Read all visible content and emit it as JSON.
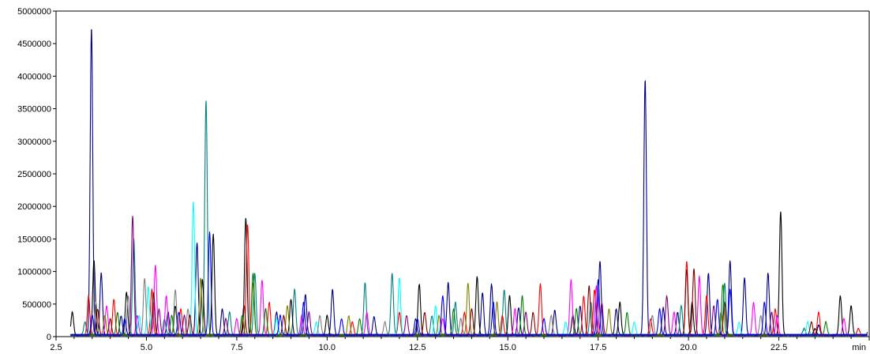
{
  "chart_data": {
    "type": "line",
    "title": "",
    "xlabel": "",
    "ylabel": "",
    "x_unit_label": "min",
    "xlim": [
      2.5,
      25.0
    ],
    "ylim": [
      0,
      5000000
    ],
    "x_ticks": [
      2.5,
      5.0,
      7.5,
      10.0,
      12.5,
      15.0,
      17.5,
      20.0,
      22.5
    ],
    "x_tick_labels": [
      "2.5",
      "5.0",
      "7.5",
      "10.0",
      "12.5",
      "15.0",
      "17.5",
      "20.0",
      "22.5"
    ],
    "y_ticks": [
      0,
      500000,
      1000000,
      1500000,
      2000000,
      2500000,
      3000000,
      3500000,
      4000000,
      4500000,
      5000000
    ],
    "y_tick_labels": [
      "0",
      "500000",
      "1000000",
      "1500000",
      "2000000",
      "2500000",
      "3000000",
      "3500000",
      "4000000",
      "4500000",
      "5000000"
    ],
    "grid": false,
    "legend": "none",
    "series": [
      {
        "color": "#000080",
        "peaks": [
          [
            3.48,
            4720000
          ],
          [
            3.75,
            950000
          ],
          [
            4.3,
            300000
          ],
          [
            5.6,
            350000
          ],
          [
            6.4,
            1420000
          ],
          [
            7.1,
            400000
          ],
          [
            8.6,
            350000
          ],
          [
            9.4,
            620000
          ],
          [
            10.15,
            700000
          ],
          [
            11.3,
            280000
          ],
          [
            12.45,
            250000
          ],
          [
            13.35,
            800000
          ],
          [
            14.3,
            650000
          ],
          [
            14.55,
            780000
          ],
          [
            15.3,
            420000
          ],
          [
            16.3,
            380000
          ],
          [
            17.0,
            450000
          ],
          [
            17.55,
            1130000
          ],
          [
            18.0,
            400000
          ],
          [
            18.8,
            3920000
          ],
          [
            19.3,
            420000
          ],
          [
            19.7,
            350000
          ],
          [
            20.55,
            950000
          ],
          [
            21.15,
            1130000
          ],
          [
            21.55,
            880000
          ],
          [
            22.2,
            950000
          ],
          [
            23.6,
            150000
          ],
          [
            25.0,
            150000
          ]
        ]
      },
      {
        "color": "#008080",
        "peaks": [
          [
            3.3,
            200000
          ],
          [
            4.65,
            1480000
          ],
          [
            5.5,
            250000
          ],
          [
            6.65,
            3600000
          ],
          [
            7.3,
            350000
          ],
          [
            8.0,
            950000
          ],
          [
            9.1,
            700000
          ],
          [
            11.05,
            800000
          ],
          [
            11.8,
            950000
          ],
          [
            12.9,
            300000
          ],
          [
            13.55,
            500000
          ],
          [
            14.9,
            700000
          ],
          [
            17.3,
            500000
          ],
          [
            19.8,
            450000
          ],
          [
            21.0,
            800000
          ],
          [
            23.2,
            100000
          ]
        ]
      },
      {
        "color": "#000000",
        "peaks": [
          [
            2.95,
            350000
          ],
          [
            3.55,
            1150000
          ],
          [
            4.45,
            650000
          ],
          [
            5.2,
            500000
          ],
          [
            5.8,
            450000
          ],
          [
            6.55,
            850000
          ],
          [
            6.85,
            1550000
          ],
          [
            7.75,
            1800000
          ],
          [
            9.0,
            550000
          ],
          [
            10.0,
            300000
          ],
          [
            12.55,
            780000
          ],
          [
            14.15,
            900000
          ],
          [
            15.05,
            600000
          ],
          [
            16.8,
            300000
          ],
          [
            18.1,
            500000
          ],
          [
            20.1,
            500000
          ],
          [
            22.55,
            1900000
          ],
          [
            23.5,
            100000
          ],
          [
            24.2,
            600000
          ],
          [
            24.5,
            450000
          ]
        ]
      },
      {
        "color": "#ff0000",
        "peaks": [
          [
            3.4,
            600000
          ],
          [
            4.1,
            550000
          ],
          [
            5.15,
            700000
          ],
          [
            5.95,
            400000
          ],
          [
            7.8,
            1700000
          ],
          [
            8.4,
            500000
          ],
          [
            10.7,
            200000
          ],
          [
            12.0,
            350000
          ],
          [
            13.8,
            350000
          ],
          [
            14.85,
            300000
          ],
          [
            15.9,
            780000
          ],
          [
            17.1,
            600000
          ],
          [
            17.4,
            700000
          ],
          [
            18.95,
            250000
          ],
          [
            19.95,
            1130000
          ],
          [
            20.5,
            600000
          ],
          [
            22.4,
            400000
          ],
          [
            23.6,
            350000
          ],
          [
            24.7,
            100000
          ]
        ]
      },
      {
        "color": "#ff00ff",
        "peaks": [
          [
            3.9,
            450000
          ],
          [
            4.75,
            300000
          ],
          [
            5.25,
            1070000
          ],
          [
            5.55,
            600000
          ],
          [
            7.5,
            250000
          ],
          [
            8.2,
            850000
          ],
          [
            9.3,
            300000
          ],
          [
            11.1,
            350000
          ],
          [
            13.2,
            250000
          ],
          [
            15.2,
            400000
          ],
          [
            16.75,
            850000
          ],
          [
            17.45,
            750000
          ],
          [
            19.6,
            350000
          ],
          [
            20.3,
            900000
          ],
          [
            21.8,
            500000
          ],
          [
            22.45,
            300000
          ],
          [
            24.3,
            250000
          ]
        ]
      },
      {
        "color": "#00ffff",
        "peaks": [
          [
            4.8,
            300000
          ],
          [
            5.05,
            750000
          ],
          [
            6.3,
            2040000
          ],
          [
            8.6,
            250000
          ],
          [
            9.7,
            200000
          ],
          [
            12.0,
            880000
          ],
          [
            13.0,
            450000
          ],
          [
            16.6,
            200000
          ],
          [
            18.5,
            200000
          ],
          [
            21.4,
            200000
          ],
          [
            23.3,
            200000
          ]
        ]
      },
      {
        "color": "#808080",
        "peaks": [
          [
            3.6,
            500000
          ],
          [
            4.5,
            600000
          ],
          [
            4.95,
            870000
          ],
          [
            5.8,
            700000
          ],
          [
            6.15,
            400000
          ],
          [
            9.8,
            300000
          ],
          [
            11.6,
            200000
          ],
          [
            13.7,
            250000
          ],
          [
            16.2,
            300000
          ],
          [
            19.0,
            300000
          ],
          [
            22.0,
            300000
          ]
        ]
      },
      {
        "color": "#808000",
        "peaks": [
          [
            3.85,
            300000
          ],
          [
            6.5,
            880000
          ],
          [
            7.95,
            800000
          ],
          [
            8.9,
            450000
          ],
          [
            10.6,
            300000
          ],
          [
            13.1,
            300000
          ],
          [
            13.9,
            800000
          ],
          [
            14.7,
            500000
          ],
          [
            17.8,
            400000
          ],
          [
            20.9,
            350000
          ]
        ]
      },
      {
        "color": "#800080",
        "peaks": [
          [
            4.62,
            1830000
          ],
          [
            5.35,
            400000
          ],
          [
            6.05,
            300000
          ],
          [
            7.2,
            250000
          ],
          [
            9.5,
            350000
          ],
          [
            12.2,
            300000
          ],
          [
            15.5,
            350000
          ],
          [
            17.6,
            500000
          ],
          [
            19.4,
            600000
          ],
          [
            20.7,
            450000
          ],
          [
            22.3,
            350000
          ]
        ]
      },
      {
        "color": "#800000",
        "peaks": [
          [
            3.65,
            400000
          ],
          [
            4.0,
            250000
          ],
          [
            5.2,
            650000
          ],
          [
            6.2,
            300000
          ],
          [
            7.7,
            450000
          ],
          [
            8.8,
            300000
          ],
          [
            12.7,
            350000
          ],
          [
            14.0,
            400000
          ],
          [
            15.7,
            350000
          ],
          [
            17.25,
            750000
          ],
          [
            19.95,
            1000000
          ],
          [
            20.15,
            1020000
          ],
          [
            21.0,
            500000
          ],
          [
            23.4,
            200000
          ]
        ]
      },
      {
        "color": "#008000",
        "peaks": [
          [
            4.2,
            350000
          ],
          [
            5.7,
            300000
          ],
          [
            7.65,
            300000
          ],
          [
            7.95,
            950000
          ],
          [
            8.3,
            400000
          ],
          [
            10.9,
            250000
          ],
          [
            13.5,
            400000
          ],
          [
            15.4,
            600000
          ],
          [
            16.9,
            400000
          ],
          [
            18.3,
            350000
          ],
          [
            20.95,
            780000
          ],
          [
            23.8,
            200000
          ]
        ]
      },
      {
        "color": "#0000ff",
        "peaks": [
          [
            3.5,
            300000
          ],
          [
            4.4,
            250000
          ],
          [
            5.9,
            350000
          ],
          [
            6.75,
            1580000
          ],
          [
            8.7,
            300000
          ],
          [
            9.35,
            500000
          ],
          [
            10.4,
            250000
          ],
          [
            12.5,
            250000
          ],
          [
            13.2,
            600000
          ],
          [
            14.6,
            500000
          ],
          [
            16.0,
            250000
          ],
          [
            17.5,
            850000
          ],
          [
            19.2,
            400000
          ],
          [
            20.8,
            550000
          ],
          [
            21.15,
            700000
          ],
          [
            22.1,
            500000
          ]
        ]
      }
    ]
  }
}
